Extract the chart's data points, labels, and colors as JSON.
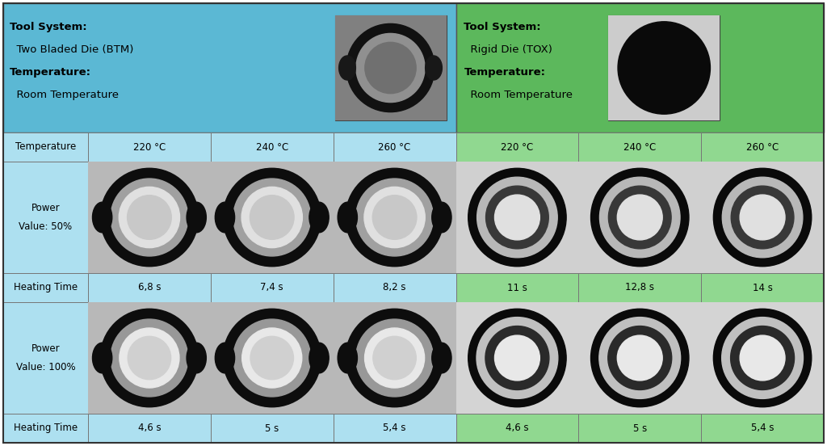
{
  "blue_bg": "#5BB8D4",
  "green_bg": "#5CB85C",
  "light_blue_row": "#ADE0F0",
  "light_green_row": "#90D890",
  "fig_width": 10.24,
  "fig_height": 5.52,
  "btm_header_lines": [
    [
      "Tool System:",
      true
    ],
    [
      "  Two Bladed Die (BTM)",
      false
    ],
    [
      "Temperature:",
      true
    ],
    [
      "  Room Temperature",
      false
    ]
  ],
  "tox_header_lines": [
    [
      "Tool System:",
      true
    ],
    [
      "  Rigid Die (TOX)",
      false
    ],
    [
      "Temperature:",
      true
    ],
    [
      "  Room Temperature",
      false
    ]
  ],
  "temp_row_label": "Temperature",
  "btm_temps": [
    "220 °C",
    "240 °C",
    "260 °C"
  ],
  "tox_temps": [
    "220 °C",
    "240 °C",
    "260 °C"
  ],
  "power50_label": [
    "Power",
    "Value: 50%"
  ],
  "heating_time_label": "Heating Time",
  "btm_heating_50": [
    "6,8 s",
    "7,4 s",
    "8,2 s"
  ],
  "tox_heating_50": [
    "11 s",
    "12,8 s",
    "14 s"
  ],
  "power100_label": [
    "Power",
    "Value: 100%"
  ],
  "btm_heating_100": [
    "4,6 s",
    "5 s",
    "5,4 s"
  ],
  "tox_heating_100": [
    "4,6 s",
    "5 s",
    "5,4 s"
  ]
}
